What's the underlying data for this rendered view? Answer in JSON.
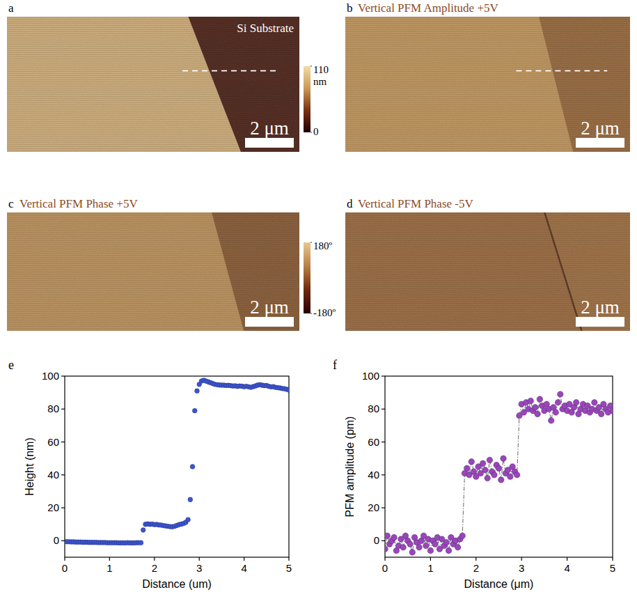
{
  "images": [
    {
      "letter": "a",
      "label": "Si Substrate",
      "scale_bar": "2 μm"
    },
    {
      "letter": "b",
      "title": "Vertical PFM Amplitude +5V",
      "scale_bar": "2 μm"
    },
    {
      "letter": "c",
      "title": "Vertical PFM Phase +5V",
      "scale_bar": "2 μm"
    },
    {
      "letter": "d",
      "title": "Vertical PFM Phase -5V",
      "scale_bar": "2 μm"
    }
  ],
  "colorbars": [
    {
      "range": [
        0,
        110
      ],
      "ticks": [
        0,
        110
      ],
      "unit": "nm"
    },
    {
      "range": [
        -180,
        180
      ],
      "ticks": [
        {
          "value": -180,
          "label": "-180º"
        },
        {
          "value": 180,
          "label": "180º"
        }
      ]
    }
  ],
  "chart_data": [
    {
      "type": "scatter",
      "panel_label": "e",
      "x_label": "Distance (um)",
      "y_label": "Height (nm)",
      "xlim": [
        0,
        5
      ],
      "ylim": [
        -10,
        100
      ],
      "xticks": [
        0,
        1,
        2,
        3,
        4,
        5
      ],
      "yticks": [
        0,
        20,
        40,
        60,
        80,
        100
      ],
      "color": "#3a55d0",
      "marker": "circle",
      "x": [
        0,
        0.05,
        0.1,
        0.15,
        0.2,
        0.25,
        0.3,
        0.35,
        0.4,
        0.45,
        0.5,
        0.55,
        0.6,
        0.65,
        0.7,
        0.75,
        0.8,
        0.85,
        0.9,
        0.95,
        1,
        1.05,
        1.1,
        1.15,
        1.2,
        1.25,
        1.3,
        1.35,
        1.4,
        1.45,
        1.5,
        1.55,
        1.6,
        1.65,
        1.7,
        1.75,
        1.8,
        1.85,
        1.9,
        1.95,
        2,
        2.05,
        2.1,
        2.15,
        2.2,
        2.25,
        2.3,
        2.35,
        2.4,
        2.45,
        2.5,
        2.55,
        2.6,
        2.65,
        2.7,
        2.75,
        2.8,
        2.85,
        2.9,
        2.95,
        3,
        3.05,
        3.1,
        3.15,
        3.2,
        3.25,
        3.3,
        3.35,
        3.4,
        3.45,
        3.5,
        3.55,
        3.6,
        3.65,
        3.7,
        3.75,
        3.8,
        3.85,
        3.9,
        3.95,
        4,
        4.05,
        4.1,
        4.15,
        4.2,
        4.25,
        4.3,
        4.35,
        4.4,
        4.45,
        4.5,
        4.55,
        4.6,
        4.65,
        4.7,
        4.75,
        4.8,
        4.85,
        4.9,
        4.95,
        5
      ],
      "values": [
        -0.5,
        -0.6,
        -0.6,
        -0.7,
        -0.7,
        -0.8,
        -0.8,
        -0.8,
        -0.9,
        -0.9,
        -0.9,
        -1.0,
        -1.0,
        -1.0,
        -1.0,
        -1.1,
        -1.1,
        -1.1,
        -1.1,
        -1.2,
        -1.2,
        -1.2,
        -1.2,
        -1.2,
        -1.3,
        -1.3,
        -1.3,
        -1.3,
        -1.2,
        -1.3,
        -1.3,
        -1.3,
        -1.2,
        -1.2,
        -1.2,
        6.5,
        10,
        10.2,
        10,
        10.1,
        9.8,
        9.9,
        9.6,
        9.5,
        9.2,
        9.0,
        8.8,
        8.6,
        8.5,
        8.8,
        9.3,
        9.8,
        10.1,
        10.5,
        11.2,
        12.8,
        25,
        45,
        79,
        91,
        95,
        97,
        97.5,
        97,
        96.5,
        96,
        95.5,
        95,
        94.8,
        94.6,
        94.5,
        94.5,
        94.3,
        94.4,
        94.2,
        94,
        94.1,
        93.8,
        94,
        93.9,
        93.6,
        93.8,
        93.5,
        93.2,
        93.6,
        94,
        94.5,
        94.8,
        94.5,
        94.2,
        94.3,
        93.8,
        93.5,
        93.6,
        93.2,
        93,
        92.8,
        92.5,
        92.3,
        92,
        91.5
      ]
    },
    {
      "type": "line",
      "panel_label": "f",
      "x_label": "Distance (μm)",
      "y_label": "PFM amplitude (pm)",
      "xlim": [
        0,
        5
      ],
      "ylim": [
        -10,
        100
      ],
      "xticks": [
        0,
        1,
        2,
        3,
        4,
        5
      ],
      "yticks": [
        0,
        20,
        40,
        60,
        80,
        100
      ],
      "color": "#9b45b8",
      "marker": "circle",
      "line_style": "dashdot",
      "x": [
        0,
        0.05,
        0.1,
        0.15,
        0.2,
        0.25,
        0.3,
        0.35,
        0.4,
        0.45,
        0.5,
        0.55,
        0.6,
        0.65,
        0.7,
        0.75,
        0.8,
        0.85,
        0.9,
        0.95,
        1,
        1.05,
        1.1,
        1.15,
        1.2,
        1.25,
        1.3,
        1.35,
        1.4,
        1.45,
        1.5,
        1.55,
        1.6,
        1.65,
        1.7,
        1.75,
        1.8,
        1.85,
        1.9,
        1.95,
        2,
        2.05,
        2.1,
        2.15,
        2.2,
        2.25,
        2.3,
        2.35,
        2.4,
        2.45,
        2.5,
        2.55,
        2.6,
        2.65,
        2.7,
        2.75,
        2.8,
        2.85,
        2.9,
        2.95,
        3,
        3.05,
        3.1,
        3.15,
        3.2,
        3.25,
        3.3,
        3.35,
        3.4,
        3.45,
        3.5,
        3.55,
        3.6,
        3.65,
        3.7,
        3.75,
        3.8,
        3.85,
        3.9,
        3.95,
        4,
        4.05,
        4.1,
        4.15,
        4.2,
        4.25,
        4.3,
        4.35,
        4.4,
        4.45,
        4.5,
        4.55,
        4.6,
        4.65,
        4.7,
        4.75,
        4.8,
        4.85,
        4.9,
        4.95,
        5
      ],
      "values": [
        -5,
        3,
        -2,
        0,
        2,
        -6,
        -3,
        1,
        -4,
        3,
        0,
        -2,
        -7,
        2,
        -1,
        -4,
        0,
        3,
        -3,
        1,
        -6,
        0,
        -2,
        2,
        -5,
        1,
        -3,
        -1,
        -6,
        2,
        -2,
        0,
        -4,
        1,
        3,
        41,
        44,
        40,
        48,
        42,
        39,
        45,
        41,
        47,
        43,
        38,
        49,
        42,
        40,
        46,
        44,
        37,
        50,
        41,
        43,
        39,
        45,
        42,
        40,
        76,
        83,
        78,
        84,
        80,
        85,
        79,
        81,
        77,
        86,
        82,
        79,
        83,
        80,
        73,
        81,
        78,
        84,
        89,
        80,
        82,
        79,
        83,
        78,
        81,
        84,
        77,
        80,
        83,
        79,
        82,
        78,
        80,
        84,
        79,
        81,
        77,
        83,
        80,
        78,
        82,
        79
      ]
    }
  ]
}
